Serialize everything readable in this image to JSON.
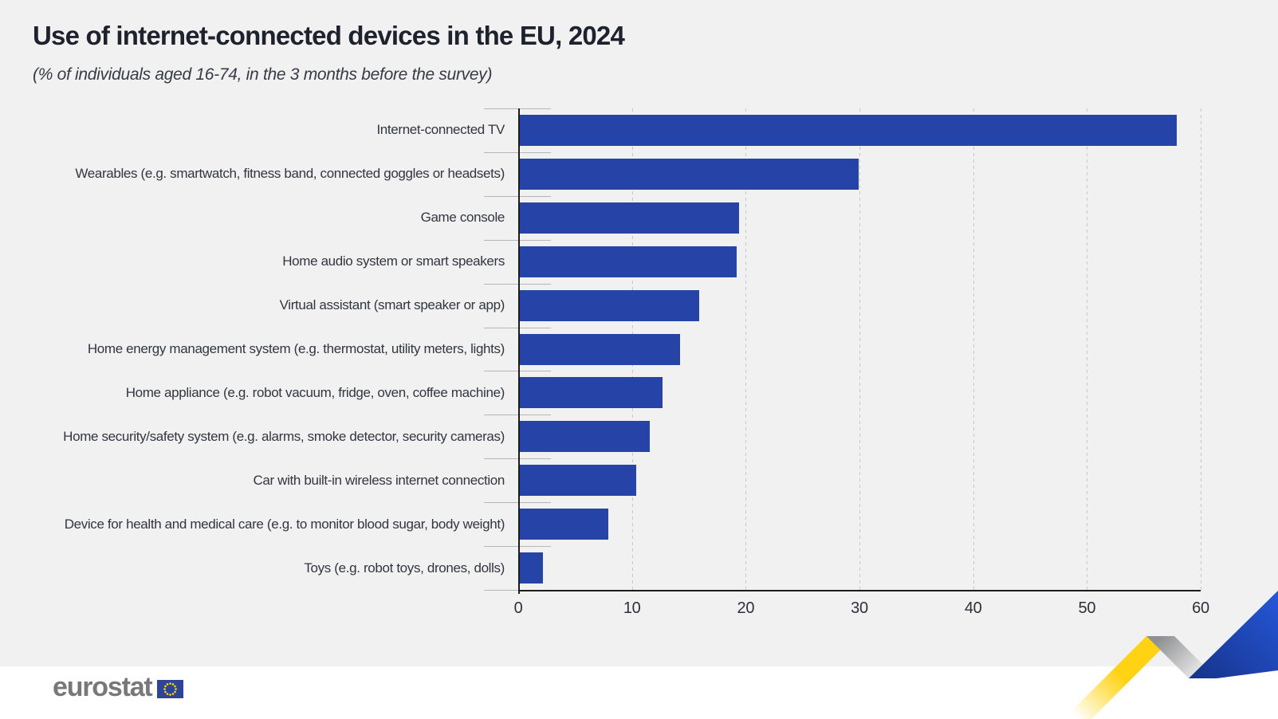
{
  "chart": {
    "title": "Use of internet-connected devices in the EU, 2024",
    "subtitle": "(% of individuals aged 16-74, in the 3 months before the survey)"
  },
  "chart_data": {
    "type": "bar",
    "orientation": "horizontal",
    "title": "Use of internet-connected devices in the EU, 2024",
    "subtitle": "(% of individuals aged 16-74, in the 3 months before the survey)",
    "categories": [
      "Internet-connected TV",
      "Wearables (e.g. smartwatch, fitness band, connected goggles or headsets)",
      "Game console",
      "Home audio system or smart speakers",
      "Virtual assistant (smart speaker or app)",
      "Home energy management system (e.g. thermostat, utility meters, lights)",
      "Home appliance (e.g. robot vacuum, fridge, oven, coffee machine)",
      "Home security/safety system (e.g. alarms, smoke detector, security cameras)",
      "Car with built-in wireless internet connection",
      "Device for health and medical care (e.g. to monitor blood sugar, body weight)",
      "Toys (e.g. robot toys, drones, dolls)"
    ],
    "values": [
      57.9,
      29.9,
      19.4,
      19.2,
      15.9,
      14.2,
      12.7,
      11.6,
      10.4,
      7.9,
      2.2
    ],
    "xlabel": "",
    "ylabel": "",
    "xlim": [
      0,
      60
    ],
    "xticks": [
      0,
      10,
      20,
      30,
      40,
      50,
      60
    ],
    "grid": "vertical-dashed",
    "legend": "none"
  },
  "footer": {
    "logo_text": "eurostat"
  },
  "colors": {
    "bar": "#2644a7",
    "background_top": "#f1f1f2",
    "background_bottom": "#ffffff",
    "axis": "#1c1c1c",
    "gridline": "#c7c7c9",
    "ribbon_yellow": "#ffd314",
    "ribbon_blue": "#2254d6",
    "ribbon_gray": "#909195",
    "flag_blue": "#2e4593",
    "flag_stars": "#ffd617",
    "logo_gray": "#77787b"
  }
}
